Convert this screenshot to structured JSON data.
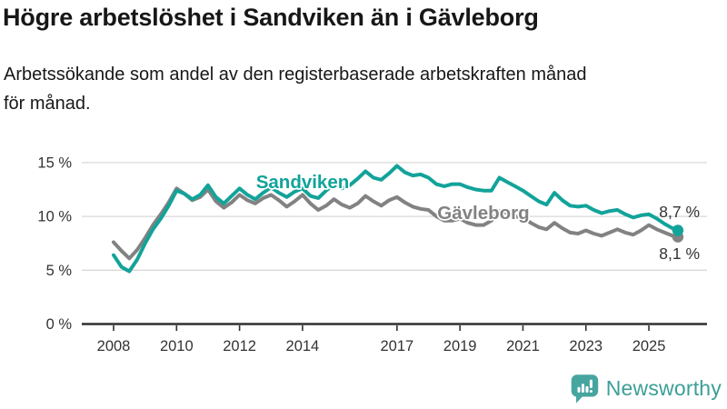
{
  "header": {
    "title": "Högre arbetslöshet i Sandviken än i Gävleborg",
    "subtitle": "Arbetssökande som andel av den registerbaserade arbetskraften månad för månad.",
    "subtitle_lines": [
      "Arbetssökande som andel av den registerbaserade arbetskraften månad",
      "för månad."
    ]
  },
  "footer": {
    "brand": "Newsworthy",
    "logo_icon": "bar-chart-exclamation-speech-bubble",
    "brand_color": "#3c9e98",
    "logo_bg_color": "#47a59f"
  },
  "colors": {
    "sandviken_line": "#12a39a",
    "gavleborg_line": "#828282",
    "grid": "#d9d9d9",
    "axis": "#2f2f2f",
    "tick_text": "#333333",
    "annotation_text": "#333333",
    "background": "#ffffff"
  },
  "chart_data": {
    "type": "line",
    "title": "Högre arbetslöshet i Sandviken än i Gävleborg",
    "xlabel": "",
    "ylabel": "Arbetssökande som andel av den registerbaserade arbetskraften",
    "x_unit": "decimal-year (monthly series, Jan 2008 – late 2025)",
    "ylim": [
      0,
      15.5
    ],
    "xlim": [
      2007.0,
      2026.9
    ],
    "grid": "horizontal",
    "legend_position": "inline-labels",
    "x": [
      2008,
      2008.25,
      2008.5,
      2008.75,
      2009,
      2009.25,
      2009.5,
      2009.75,
      2010,
      2010.25,
      2010.5,
      2010.75,
      2011,
      2011.25,
      2011.5,
      2011.75,
      2012,
      2012.25,
      2012.5,
      2012.75,
      2013,
      2013.25,
      2013.5,
      2013.75,
      2014,
      2014.25,
      2014.5,
      2014.75,
      2015,
      2015.25,
      2015.5,
      2015.75,
      2016,
      2016.25,
      2016.5,
      2016.75,
      2017,
      2017.25,
      2017.5,
      2017.75,
      2018,
      2018.25,
      2018.5,
      2018.75,
      2019,
      2019.25,
      2019.5,
      2019.75,
      2020,
      2020.25,
      2020.5,
      2020.75,
      2021,
      2021.25,
      2021.5,
      2021.75,
      2022,
      2022.25,
      2022.5,
      2022.75,
      2023,
      2023.25,
      2023.5,
      2023.75,
      2024,
      2024.25,
      2024.5,
      2024.75,
      2025,
      2025.25,
      2025.5,
      2025.75,
      2025.92
    ],
    "series": [
      {
        "name": "Sandviken",
        "color": "#12a39a",
        "end_label": "8,7 %",
        "end_value": 8.7,
        "values": [
          6.4,
          5.3,
          4.9,
          6.0,
          7.5,
          8.8,
          9.8,
          11.0,
          12.4,
          12.1,
          11.6,
          12.0,
          12.9,
          11.8,
          11.2,
          11.9,
          12.6,
          12.0,
          11.6,
          12.2,
          12.7,
          12.2,
          11.8,
          12.3,
          12.6,
          11.9,
          11.7,
          12.4,
          13.0,
          12.6,
          12.9,
          13.5,
          14.2,
          13.6,
          13.4,
          14.0,
          14.7,
          14.1,
          13.8,
          13.9,
          13.6,
          13.0,
          12.8,
          13.0,
          13.0,
          12.7,
          12.5,
          12.4,
          12.4,
          13.6,
          13.2,
          12.8,
          12.4,
          11.9,
          11.4,
          11.1,
          12.2,
          11.5,
          11.0,
          10.9,
          11.0,
          10.6,
          10.3,
          10.5,
          10.6,
          10.2,
          9.9,
          10.1,
          10.2,
          9.8,
          9.3,
          8.9,
          8.7
        ]
      },
      {
        "name": "Gävleborg",
        "color": "#828282",
        "end_label": "8,1 %",
        "end_value": 8.1,
        "values": [
          7.6,
          6.8,
          6.1,
          6.9,
          8.0,
          9.2,
          10.2,
          11.3,
          12.6,
          12.1,
          11.5,
          11.8,
          12.5,
          11.4,
          10.8,
          11.3,
          12.0,
          11.5,
          11.2,
          11.7,
          12.0,
          11.5,
          10.9,
          11.4,
          12.0,
          11.2,
          10.6,
          11.0,
          11.6,
          11.1,
          10.8,
          11.2,
          11.9,
          11.4,
          11.0,
          11.5,
          11.8,
          11.3,
          10.9,
          10.7,
          10.6,
          10.0,
          9.6,
          9.6,
          9.8,
          9.4,
          9.2,
          9.2,
          9.6,
          10.5,
          10.3,
          10.0,
          9.9,
          9.4,
          9.0,
          8.8,
          9.4,
          8.9,
          8.5,
          8.4,
          8.7,
          8.4,
          8.2,
          8.5,
          8.8,
          8.5,
          8.3,
          8.7,
          9.2,
          8.8,
          8.5,
          8.2,
          8.1
        ]
      }
    ],
    "y_ticks": [
      {
        "value": 0,
        "label": "0 %"
      },
      {
        "value": 5,
        "label": "5 %"
      },
      {
        "value": 10,
        "label": "10 %"
      },
      {
        "value": 15,
        "label": "15 %"
      }
    ],
    "x_ticks": [
      {
        "value": 2008,
        "label": "2008"
      },
      {
        "value": 2010,
        "label": "2010"
      },
      {
        "value": 2012,
        "label": "2012"
      },
      {
        "value": 2014,
        "label": "2014"
      },
      {
        "value": 2017,
        "label": "2017"
      },
      {
        "value": 2019,
        "label": "2019"
      },
      {
        "value": 2021,
        "label": "2021"
      },
      {
        "value": 2023,
        "label": "2023"
      },
      {
        "value": 2025,
        "label": "2025"
      }
    ]
  }
}
